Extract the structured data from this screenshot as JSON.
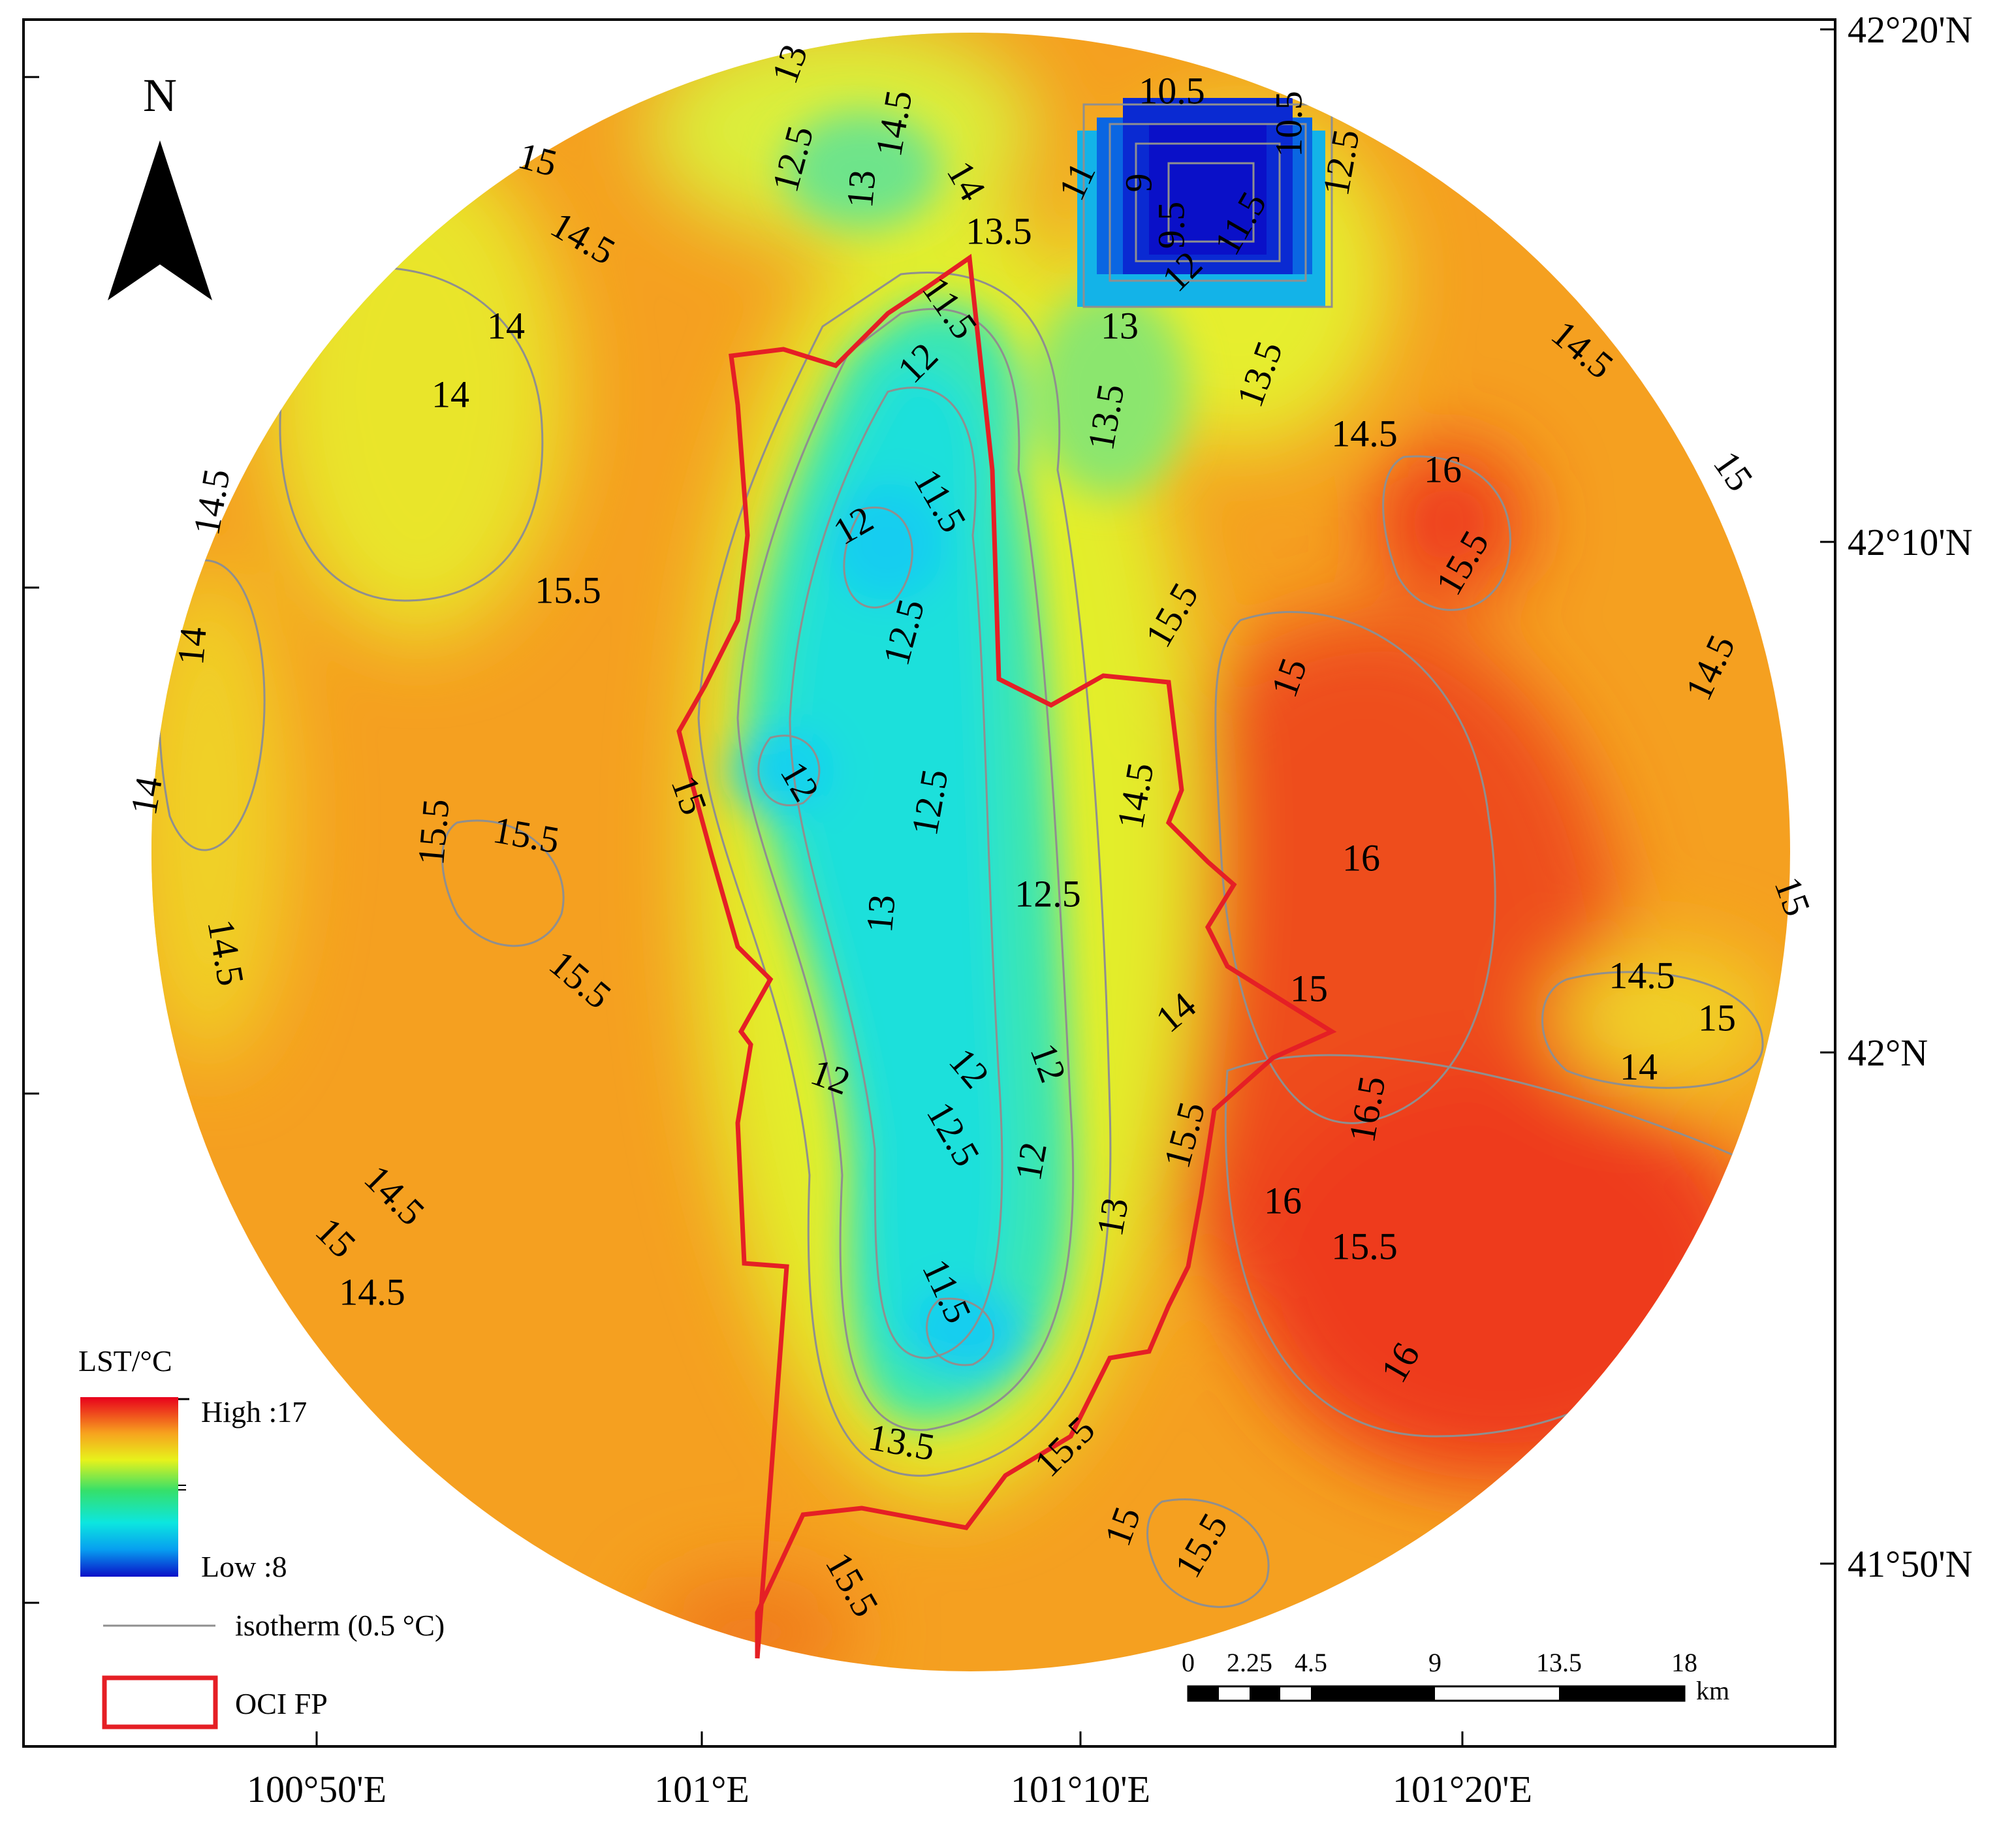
{
  "map": {
    "north_label": "N",
    "lon_ticks": [
      "100°50'E",
      "101°E",
      "101°10'E",
      "101°20'E"
    ],
    "lat_ticks": [
      "42°20'N",
      "42°10'N",
      "42°N",
      "41°50'N"
    ],
    "contour_labels": [
      "15",
      "14.5",
      "14",
      "14",
      "14.5",
      "14",
      "14",
      "14.5",
      "15.5",
      "15.5",
      "15.5",
      "15.5",
      "14.5",
      "15",
      "14.5",
      "13",
      "12.5",
      "14.5",
      "13",
      "14",
      "13.5",
      "11.5",
      "12",
      "12",
      "11.5",
      "12.5",
      "12",
      "12.5",
      "13",
      "12.5",
      "15",
      "12",
      "12",
      "12",
      "12.5",
      "12",
      "11.5",
      "13.5",
      "15.5",
      "14.5",
      "14",
      "15.5",
      "13",
      "10.5",
      "10.5",
      "11",
      "9",
      "9.5",
      "12",
      "11.5",
      "12.5",
      "13",
      "13.5",
      "13.5",
      "14.5",
      "14.5",
      "16",
      "15",
      "15.5",
      "15.5",
      "15",
      "16",
      "14.5",
      "15",
      "14.5",
      "15",
      "14",
      "15",
      "16.5",
      "16",
      "15.5",
      "16",
      "15",
      "15.5",
      "15.5"
    ],
    "colors": {
      "ramp": [
        "#e8001c",
        "#f26a1b",
        "#f7a21e",
        "#f4e61b",
        "#cfef1d",
        "#49e36a",
        "#1fe4c6",
        "#09dcef",
        "#0a3fe0",
        "#0a10c8"
      ],
      "boundary": "#e51f25",
      "isotherm": "#8f8f8f"
    }
  },
  "legend": {
    "title": "LST/°C",
    "high_label": "High :17",
    "low_label": "Low :8",
    "isotherm_label": "isotherm (0.5 °C)",
    "boundary_label": "OCI FP"
  },
  "scale_bar": {
    "ticks": [
      "0",
      "2.25",
      "4.5",
      "9",
      "13.5",
      "18"
    ],
    "unit": "km"
  }
}
